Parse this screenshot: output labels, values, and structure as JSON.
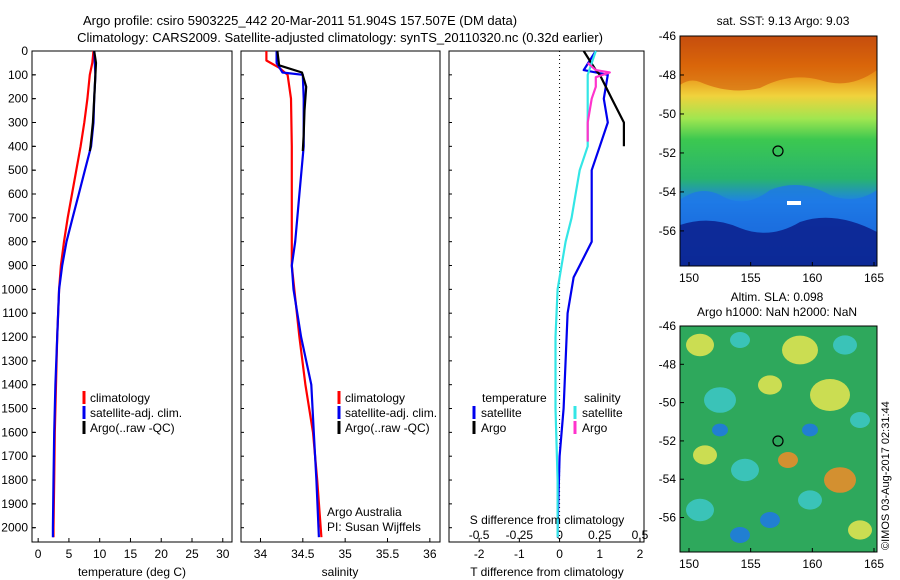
{
  "title": {
    "line1": "Argo profile: csiro 5903225_442 20-Mar-2011 51.904S 157.507E (DM data)",
    "line2": "Climatology: CARS2009. Satellite-adjusted climatology: synTS_20110320.nc (0.32d earlier)"
  },
  "credit": "©IMOS 03-Aug-2017 02:31:44",
  "colors": {
    "climatology": "#ff0000",
    "satellite": "#0000ee",
    "argo": "#000000",
    "s_satellite": "#33e6e6",
    "s_argo": "#ff33cc"
  },
  "depth_axis": {
    "ticks": [
      0,
      100,
      200,
      300,
      400,
      500,
      600,
      700,
      800,
      900,
      1000,
      1100,
      1200,
      1300,
      1400,
      1500,
      1600,
      1700,
      1800,
      1900,
      2000
    ],
    "range": [
      0,
      2060
    ]
  },
  "legend_labels": {
    "climatology": "climatology",
    "satellite": "satellite-adj. clim.",
    "argo": "Argo(..raw -QC)"
  },
  "diff_legend": {
    "t_header": "temperature",
    "s_header": "salinity",
    "satellite": "satellite",
    "argo": "Argo"
  },
  "attribution": {
    "line1": "Argo Australia",
    "line2": "PI: Susan Wijffels"
  },
  "maps": {
    "sst": {
      "title": "sat. SST: 9.13 Argo: 9.03",
      "yticks": [
        "-46",
        "-48",
        "-50",
        "-52",
        "-54",
        "-56"
      ],
      "xticks": [
        "150",
        "155",
        "160",
        "165"
      ]
    },
    "sla": {
      "title1": "Altim. SLA: 0.098",
      "title2": "Argo h1000: NaN h2000: NaN",
      "yticks": [
        "-46",
        "-48",
        "-50",
        "-52",
        "-54",
        "-56"
      ],
      "xticks": [
        "150",
        "155",
        "160",
        "165"
      ]
    }
  },
  "chart_data": [
    {
      "type": "line",
      "xlabel": "temperature (deg C)",
      "ylabel": "",
      "xlim": [
        -1,
        31.5
      ],
      "ylim": [
        2060,
        0
      ],
      "xticks": [
        0,
        5,
        10,
        15,
        20,
        25,
        30
      ],
      "series": [
        {
          "name": "climatology",
          "points": [
            [
              9.0,
              0
            ],
            [
              8.8,
              50
            ],
            [
              8.4,
              100
            ],
            [
              8.0,
              200
            ],
            [
              7.5,
              300
            ],
            [
              6.9,
              400
            ],
            [
              6.2,
              500
            ],
            [
              5.5,
              600
            ],
            [
              4.8,
              700
            ],
            [
              4.2,
              800
            ],
            [
              3.7,
              900
            ],
            [
              3.4,
              1000
            ],
            [
              3.1,
              1200
            ],
            [
              2.9,
              1400
            ],
            [
              2.7,
              1600
            ],
            [
              2.6,
              1800
            ],
            [
              2.5,
              2000
            ],
            [
              2.5,
              2040
            ]
          ]
        },
        {
          "name": "satellite-adj. clim.",
          "points": [
            [
              9.1,
              0
            ],
            [
              9.3,
              100
            ],
            [
              9.1,
              200
            ],
            [
              9.0,
              300
            ],
            [
              8.6,
              400
            ],
            [
              7.6,
              500
            ],
            [
              6.6,
              600
            ],
            [
              5.6,
              700
            ],
            [
              4.6,
              800
            ],
            [
              3.9,
              900
            ],
            [
              3.4,
              1000
            ],
            [
              3.1,
              1200
            ],
            [
              2.8,
              1400
            ],
            [
              2.6,
              1600
            ],
            [
              2.5,
              1800
            ],
            [
              2.4,
              2000
            ],
            [
              2.4,
              2040
            ]
          ]
        },
        {
          "name": "Argo(..raw -QC)",
          "points": [
            [
              9.1,
              0
            ],
            [
              9.4,
              50
            ],
            [
              9.3,
              100
            ],
            [
              9.1,
              200
            ],
            [
              8.9,
              300
            ],
            [
              8.5,
              400
            ],
            [
              8.4,
              420
            ]
          ]
        }
      ]
    },
    {
      "type": "line",
      "xlabel": "salinity",
      "ylabel": "",
      "xlim": [
        33.77,
        36.12
      ],
      "ylim": [
        2060,
        0
      ],
      "xticks": [
        34,
        34.5,
        35,
        35.5,
        36
      ],
      "series": [
        {
          "name": "climatology",
          "points": [
            [
              34.07,
              0
            ],
            [
              34.07,
              40
            ],
            [
              34.22,
              70
            ],
            [
              34.32,
              100
            ],
            [
              34.36,
              200
            ],
            [
              34.37,
              400
            ],
            [
              34.37,
              600
            ],
            [
              34.37,
              800
            ],
            [
              34.37,
              900
            ],
            [
              34.4,
              1000
            ],
            [
              34.46,
              1200
            ],
            [
              34.53,
              1400
            ],
            [
              34.62,
              1600
            ],
            [
              34.67,
              1800
            ],
            [
              34.72,
              2040
            ]
          ]
        },
        {
          "name": "satellite-adj. clim.",
          "points": [
            [
              34.19,
              0
            ],
            [
              34.19,
              50
            ],
            [
              34.26,
              90
            ],
            [
              34.5,
              100
            ],
            [
              34.51,
              200
            ],
            [
              34.51,
              400
            ],
            [
              34.46,
              600
            ],
            [
              34.41,
              800
            ],
            [
              34.37,
              900
            ],
            [
              34.39,
              1000
            ],
            [
              34.48,
              1200
            ],
            [
              34.6,
              1400
            ],
            [
              34.63,
              1600
            ],
            [
              34.66,
              1800
            ],
            [
              34.69,
              2040
            ]
          ]
        },
        {
          "name": "Argo(..raw -QC)",
          "points": [
            [
              34.2,
              0
            ],
            [
              34.22,
              60
            ],
            [
              34.49,
              90
            ],
            [
              34.54,
              150
            ],
            [
              34.52,
              250
            ],
            [
              34.51,
              350
            ],
            [
              34.5,
              420
            ]
          ]
        }
      ]
    },
    {
      "type": "line",
      "xlabel": "T difference from climatology",
      "xlabel2": "S difference from climatology",
      "ylabel": "",
      "xlim": [
        -2.75,
        2.1
      ],
      "ylim": [
        2060,
        0
      ],
      "xticks": [
        -2,
        -1,
        0,
        1,
        2
      ],
      "xticks2": [
        -0.5,
        -0.25,
        0,
        0.25,
        0.5
      ],
      "series": [
        {
          "name": "temperature satellite",
          "points": [
            [
              0.9,
              0
            ],
            [
              0.6,
              80
            ],
            [
              1.2,
              100
            ],
            [
              1.1,
              200
            ],
            [
              1.2,
              300
            ],
            [
              1.0,
              400
            ],
            [
              0.8,
              500
            ],
            [
              0.8,
              600
            ],
            [
              0.8,
              700
            ],
            [
              0.8,
              800
            ],
            [
              0.5,
              900
            ],
            [
              0.35,
              950
            ],
            [
              0.2,
              1100
            ],
            [
              0.15,
              1300
            ],
            [
              0.1,
              1500
            ],
            [
              0.0,
              1700
            ],
            [
              -0.05,
              2000
            ],
            [
              -0.05,
              2040
            ]
          ]
        },
        {
          "name": "temperature Argo",
          "points": [
            [
              0.6,
              0
            ],
            [
              0.9,
              80
            ],
            [
              1.0,
              100
            ],
            [
              1.3,
              200
            ],
            [
              1.6,
              300
            ],
            [
              1.6,
              400
            ]
          ]
        },
        {
          "name": "salinity satellite",
          "points": [
            [
              0.9,
              0
            ],
            [
              0.7,
              100
            ],
            [
              0.7,
              300
            ],
            [
              0.7,
              400
            ],
            [
              0.5,
              500
            ],
            [
              0.4,
              600
            ],
            [
              0.3,
              700
            ],
            [
              0.15,
              800
            ],
            [
              0.05,
              900
            ],
            [
              -0.05,
              1000
            ],
            [
              -0.1,
              1200
            ],
            [
              -0.1,
              1500
            ],
            [
              -0.05,
              1800
            ],
            [
              -0.05,
              2040
            ]
          ]
        },
        {
          "name": "salinity Argo",
          "points": [
            [
              0.7,
              50
            ],
            [
              0.9,
              80
            ],
            [
              1.25,
              90
            ],
            [
              0.9,
              110
            ],
            [
              0.9,
              150
            ],
            [
              0.8,
              200
            ],
            [
              0.7,
              300
            ],
            [
              0.7,
              380
            ]
          ]
        }
      ]
    }
  ]
}
